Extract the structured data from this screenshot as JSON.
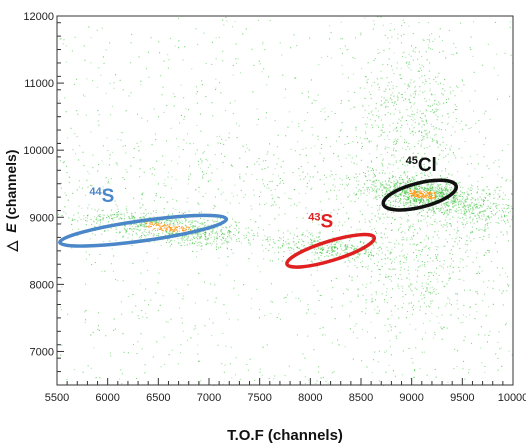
{
  "chart_data": {
    "type": "scatter",
    "title": "",
    "xlabel": "T.O.F (channels)",
    "ylabel_prefix": "△",
    "ylabel_symbol": "E",
    "ylabel_suffix": " (channels)",
    "xlim": [
      5500,
      10000
    ],
    "ylim": [
      6500,
      12000
    ],
    "x_ticks": [
      5500,
      6000,
      6500,
      7000,
      7500,
      8000,
      8500,
      9000,
      9500,
      10000
    ],
    "y_ticks": [
      7000,
      8000,
      9000,
      10000,
      11000,
      12000
    ],
    "grid": false,
    "point_color": "#3ec23e",
    "point_hot_color": "#ff9a1a",
    "density_regions": [
      {
        "x": 6600,
        "y": 8850,
        "sx": 450,
        "sy": 130,
        "rho": -0.6,
        "weight": 0.18
      },
      {
        "x": 8200,
        "y": 8550,
        "sx": 300,
        "sy": 100,
        "rho": -0.5,
        "weight": 0.07
      },
      {
        "x": 9100,
        "y": 9350,
        "sx": 260,
        "sy": 120,
        "rho": -0.4,
        "weight": 0.22
      },
      {
        "x": 9000,
        "y": 10400,
        "sx": 280,
        "sy": 700,
        "rho": 0.0,
        "weight": 0.12
      },
      {
        "x": 9050,
        "y": 8300,
        "sx": 350,
        "sy": 600,
        "rho": 0.1,
        "weight": 0.1
      },
      {
        "x": 7500,
        "y": 9600,
        "sx": 1200,
        "sy": 500,
        "rho": -0.2,
        "weight": 0.08
      },
      {
        "x": 9700,
        "y": 9100,
        "sx": 250,
        "sy": 200,
        "rho": 0.0,
        "weight": 0.06
      }
    ],
    "annotations": [
      {
        "name": "44S",
        "mass": "44",
        "element": "S",
        "color": "#4a86c8",
        "label_x": 5820,
        "label_y": 9230,
        "ellipse": {
          "cx": 6350,
          "cy": 8800,
          "rx": 830,
          "ry": 150,
          "angle_deg": -8
        }
      },
      {
        "name": "43S",
        "mass": "43",
        "element": "S",
        "color": "#e02020",
        "label_x": 7980,
        "label_y": 8850,
        "ellipse": {
          "cx": 8200,
          "cy": 8500,
          "rx": 450,
          "ry": 145,
          "angle_deg": -17
        }
      },
      {
        "name": "45Cl",
        "mass": "45",
        "element": "Cl",
        "color": "#111111",
        "label_x": 8940,
        "label_y": 9690,
        "ellipse": {
          "cx": 9080,
          "cy": 9330,
          "rx": 370,
          "ry": 180,
          "angle_deg": -14
        }
      }
    ]
  }
}
